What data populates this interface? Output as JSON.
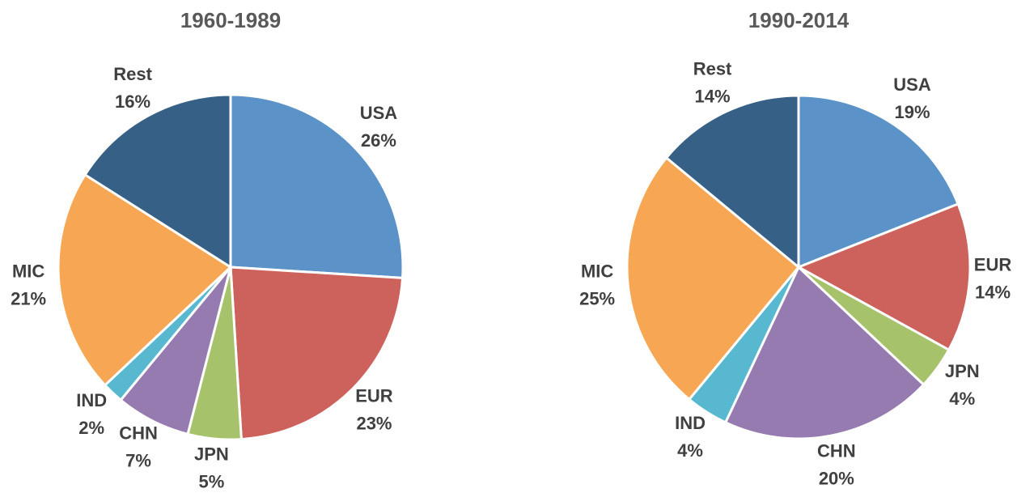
{
  "chart_data": [
    {
      "type": "pie",
      "title": "1960-1989",
      "categories": [
        "USA",
        "EUR",
        "JPN",
        "CHN",
        "IND",
        "MIC",
        "Rest"
      ],
      "values": [
        26,
        23,
        5,
        7,
        2,
        21,
        16
      ],
      "value_labels": [
        "26%",
        "23%",
        "5%",
        "7%",
        "2%",
        "21%",
        "16%"
      ],
      "colors": [
        "#5b93c8",
        "#cd625c",
        "#a6c26a",
        "#957bb0",
        "#57b8d0",
        "#f7a654",
        "#376086"
      ]
    },
    {
      "type": "pie",
      "title": "1990-2014",
      "categories": [
        "USA",
        "EUR",
        "JPN",
        "CHN",
        "IND",
        "MIC",
        "Rest"
      ],
      "values": [
        19,
        14,
        4,
        20,
        4,
        25,
        14
      ],
      "value_labels": [
        "19%",
        "14%",
        "4%",
        "20%",
        "4%",
        "25%",
        "14%"
      ],
      "colors": [
        "#5b93c8",
        "#cd625c",
        "#a6c26a",
        "#957bb0",
        "#57b8d0",
        "#f7a654",
        "#376086"
      ]
    }
  ]
}
